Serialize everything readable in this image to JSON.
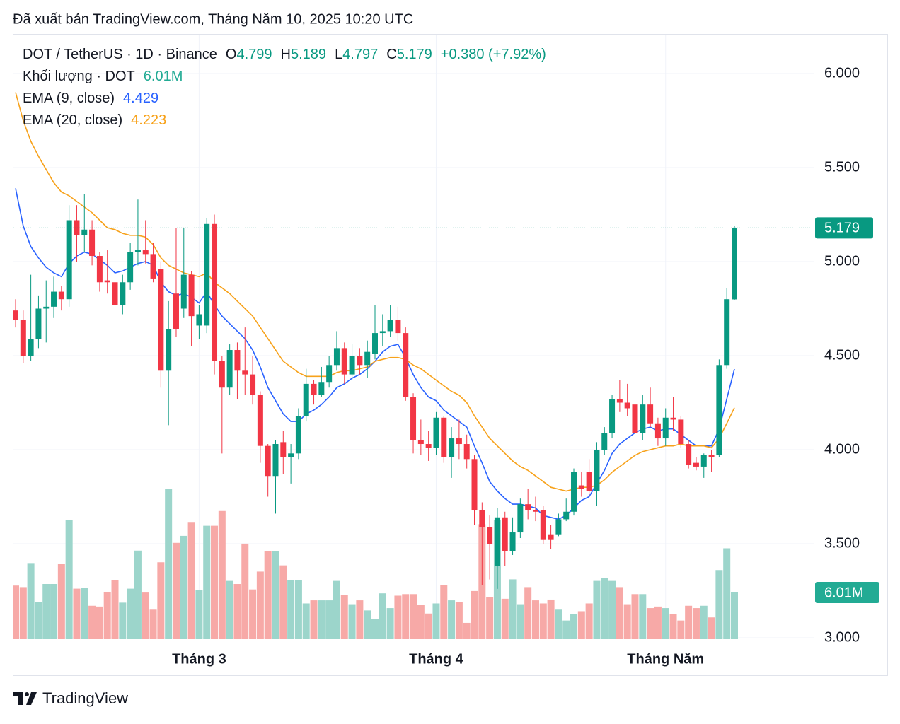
{
  "header": "Đã xuất bản TradingView.com, Tháng Năm 10, 2025 10:20 UTC",
  "brand": "TradingView",
  "chart_data": {
    "type": "candlestick",
    "title": "DOT / TetherUS · 1D · Binance",
    "ohlc_letters": [
      "O",
      "H",
      "L",
      "C"
    ],
    "change": "+0.380 (+7.92%)",
    "up_color": "#089981",
    "down_color": "#f23645",
    "categories": [
      null,
      null,
      null,
      null,
      null,
      null,
      null,
      null,
      null,
      null,
      null,
      null,
      null,
      null,
      null,
      null,
      null,
      null,
      null,
      null,
      null,
      null,
      null,
      null,
      "Tháng 3",
      null,
      null,
      null,
      null,
      null,
      null,
      null,
      null,
      null,
      null,
      null,
      null,
      null,
      null,
      null,
      null,
      null,
      null,
      null,
      null,
      null,
      null,
      null,
      null,
      null,
      null,
      null,
      null,
      null,
      null,
      "Tháng 4",
      null,
      null,
      null,
      null,
      null,
      null,
      null,
      null,
      null,
      null,
      null,
      null,
      null,
      null,
      null,
      null,
      null,
      null,
      null,
      null,
      null,
      null,
      null,
      null,
      null,
      null,
      null,
      null,
      null,
      "Tháng Năm",
      null,
      null,
      null,
      null,
      null,
      null,
      null,
      null,
      null
    ],
    "open": [
      4.74,
      4.69,
      4.5,
      4.59,
      4.75,
      4.76,
      4.84,
      4.8,
      5.22,
      5.14,
      5.17,
      5.03,
      4.9,
      4.89,
      4.77,
      4.89,
      5.05,
      5.06,
      5.04,
      4.96,
      4.42,
      4.83,
      4.75,
      4.93,
      4.66,
      4.66,
      5.2,
      4.47,
      4.33,
      4.53,
      4.42,
      4.4,
      4.29,
      4.02,
      3.86,
      4.04,
      3.96,
      3.98,
      4.18,
      4.35,
      4.29,
      4.36,
      4.45,
      4.54,
      4.4,
      4.5,
      4.45,
      4.51,
      4.62,
      4.63,
      4.69,
      4.62,
      4.28,
      4.05,
      4.03,
      4.01,
      4.17,
      3.96,
      4.06,
      4.03,
      3.95,
      3.68,
      3.59,
      3.38,
      3.64,
      3.46,
      3.56,
      3.71,
      3.68,
      3.68,
      3.55,
      3.55,
      3.63,
      3.67,
      3.81,
      3.88,
      3.78,
      4.0,
      4.09,
      4.27,
      4.25,
      4.24,
      4.09,
      4.24,
      4.14,
      4.06,
      4.17,
      4.16,
      4.03,
      3.93,
      3.91,
      3.97,
      3.97,
      4.45,
      4.799
    ],
    "high": [
      4.8,
      4.74,
      4.93,
      4.82,
      4.9,
      4.92,
      4.87,
      5.3,
      5.3,
      5.36,
      5.22,
      5.05,
      5.06,
      4.96,
      4.93,
      5.1,
      5.33,
      5.22,
      5.1,
      5.0,
      4.79,
      5.18,
      5.18,
      4.95,
      4.77,
      5.23,
      5.25,
      4.5,
      4.56,
      4.57,
      4.65,
      4.5,
      4.31,
      4.03,
      4.05,
      4.1,
      4.03,
      4.22,
      4.43,
      4.37,
      4.44,
      4.5,
      4.63,
      4.57,
      4.56,
      4.54,
      4.58,
      4.77,
      4.72,
      4.77,
      4.76,
      4.65,
      4.3,
      4.16,
      4.1,
      4.2,
      4.18,
      4.12,
      4.16,
      4.08,
      3.97,
      3.72,
      3.65,
      3.69,
      3.67,
      3.64,
      3.74,
      3.79,
      3.75,
      3.7,
      3.6,
      3.66,
      3.74,
      3.9,
      3.88,
      3.95,
      4.04,
      4.12,
      4.29,
      4.37,
      4.35,
      4.3,
      4.29,
      4.33,
      4.17,
      4.22,
      4.28,
      4.18,
      4.05,
      3.96,
      3.98,
      4.0,
      4.48,
      4.86,
      5.189
    ],
    "low": [
      4.65,
      4.46,
      4.47,
      4.54,
      4.57,
      4.7,
      4.74,
      4.76,
      5.0,
      5.05,
      4.98,
      4.84,
      4.83,
      4.63,
      4.72,
      4.85,
      4.98,
      4.99,
      4.89,
      4.33,
      4.13,
      4.6,
      4.7,
      4.55,
      4.59,
      4.62,
      4.4,
      3.98,
      4.29,
      4.27,
      4.29,
      4.24,
      3.93,
      3.75,
      3.66,
      3.87,
      3.82,
      3.95,
      4.15,
      4.24,
      4.28,
      4.33,
      4.42,
      4.35,
      4.37,
      4.4,
      4.38,
      4.48,
      4.55,
      4.6,
      4.58,
      4.26,
      3.98,
      3.97,
      3.94,
      3.97,
      3.93,
      3.85,
      3.95,
      3.9,
      3.6,
      3.28,
      3.31,
      3.26,
      3.38,
      3.44,
      3.53,
      3.63,
      3.62,
      3.5,
      3.47,
      3.54,
      3.62,
      3.65,
      3.75,
      3.75,
      3.7,
      3.97,
      4.06,
      4.2,
      4.18,
      4.06,
      4.05,
      4.12,
      4.02,
      4.02,
      4.1,
      4.01,
      3.9,
      3.89,
      3.85,
      3.88,
      3.96,
      4.43,
      4.797
    ],
    "close": [
      4.69,
      4.5,
      4.59,
      4.75,
      4.76,
      4.84,
      4.8,
      5.22,
      5.14,
      5.17,
      5.03,
      4.89,
      4.89,
      4.77,
      4.89,
      5.05,
      5.06,
      5.04,
      4.91,
      4.42,
      4.64,
      4.64,
      4.93,
      4.71,
      4.72,
      5.2,
      4.47,
      4.33,
      4.53,
      4.42,
      4.4,
      4.29,
      4.02,
      3.86,
      4.03,
      3.96,
      3.98,
      4.18,
      4.35,
      4.29,
      4.36,
      4.45,
      4.54,
      4.4,
      4.5,
      4.45,
      4.52,
      4.62,
      4.63,
      4.69,
      4.62,
      4.28,
      4.05,
      4.03,
      4.01,
      4.17,
      3.96,
      4.06,
      4.03,
      3.95,
      3.68,
      3.59,
      3.5,
      3.64,
      3.46,
      3.56,
      3.71,
      3.68,
      3.67,
      3.52,
      3.52,
      3.63,
      3.67,
      3.88,
      3.79,
      3.78,
      4.0,
      4.09,
      4.27,
      4.25,
      4.22,
      4.09,
      4.24,
      4.14,
      4.06,
      4.17,
      4.16,
      4.03,
      3.92,
      3.91,
      3.97,
      3.96,
      4.45,
      4.8,
      5.179
    ],
    "volume": {
      "name": "Khối lượng · DOT",
      "up_color": "#9cd5cb",
      "down_color": "#f7a9a7",
      "tag_color": "#22ab94",
      "values": [
        6.9,
        6.7,
        9.8,
        4.8,
        7.1,
        7.1,
        9.7,
        15.3,
        6.5,
        6.6,
        4.3,
        4.2,
        6.1,
        7.6,
        4.7,
        6.5,
        11.4,
        6.0,
        3.8,
        9.9,
        19.3,
        12.4,
        13.3,
        15.0,
        6.3,
        14.6,
        14.6,
        16.5,
        7.5,
        7.1,
        12.3,
        6.4,
        8.7,
        11.3,
        11.3,
        9.5,
        7.6,
        7.6,
        4.6,
        5.0,
        5.0,
        5.0,
        7.5,
        5.7,
        4.5,
        5.0,
        3.7,
        2.6,
        5.9,
        4.0,
        5.6,
        5.8,
        5.8,
        4.4,
        3.3,
        4.6,
        7.0,
        5.0,
        4.8,
        2.1,
        6.2,
        14.8,
        5.4,
        15.3,
        5.2,
        7.7,
        4.5,
        6.7,
        5.0,
        4.6,
        5.1,
        3.8,
        2.4,
        3.2,
        3.6,
        4.6,
        7.5,
        7.9,
        7.5,
        6.7,
        4.5,
        5.8,
        5.8,
        4.0,
        4.2,
        4.0,
        3.2,
        2.4,
        4.3,
        4.0,
        4.3,
        2.8,
        8.9,
        11.7,
        6.01
      ],
      "value_labels": [
        null,
        null,
        null,
        null,
        null,
        null,
        null,
        null,
        null,
        null,
        null,
        null,
        null,
        null,
        null,
        null,
        null,
        null,
        null,
        null,
        null,
        null,
        null,
        null,
        null,
        null,
        null,
        null,
        null,
        null,
        null,
        null,
        null,
        null,
        null,
        null,
        null,
        null,
        null,
        null,
        null,
        null,
        null,
        null,
        null,
        null,
        null,
        null,
        null,
        null,
        null,
        null,
        null,
        null,
        null,
        null,
        null,
        null,
        null,
        null,
        null,
        null,
        null,
        null,
        null,
        null,
        null,
        null,
        null,
        null,
        null,
        null,
        null,
        null,
        null,
        null,
        null,
        null,
        null,
        null,
        null,
        null,
        null,
        null,
        null,
        null,
        null,
        null,
        null,
        null,
        null,
        null,
        null,
        null,
        "6.01M"
      ]
    },
    "series": [
      {
        "name": "EMA (9, close)",
        "color": "#2962ff",
        "values": [
          5.39,
          5.19,
          5.08,
          5.02,
          4.97,
          4.94,
          4.92,
          4.99,
          5.03,
          5.05,
          5.04,
          5.01,
          4.98,
          4.94,
          4.95,
          4.97,
          4.99,
          5.0,
          4.98,
          4.89,
          4.84,
          4.82,
          4.83,
          4.81,
          4.78,
          4.84,
          4.77,
          4.71,
          4.67,
          4.63,
          4.59,
          4.53,
          4.44,
          4.33,
          4.26,
          4.19,
          4.15,
          4.15,
          4.19,
          4.21,
          4.24,
          4.28,
          4.33,
          4.35,
          4.38,
          4.4,
          4.43,
          4.47,
          4.52,
          4.55,
          4.56,
          4.49,
          4.4,
          4.33,
          4.28,
          4.26,
          4.21,
          4.18,
          4.15,
          4.12,
          4.02,
          3.93,
          3.83,
          3.78,
          3.74,
          3.71,
          3.71,
          3.7,
          3.69,
          3.65,
          3.64,
          3.63,
          3.65,
          3.69,
          3.73,
          3.75,
          3.82,
          3.89,
          3.98,
          4.03,
          4.06,
          4.09,
          4.11,
          4.12,
          4.1,
          4.11,
          4.11,
          4.08,
          4.05,
          4.02,
          4.02,
          4.02,
          4.11,
          4.27,
          4.429
        ]
      },
      {
        "name": "EMA (20, close)",
        "color": "#f7a21b",
        "values": [
          5.9,
          5.75,
          5.64,
          5.56,
          5.49,
          5.42,
          5.37,
          5.35,
          5.32,
          5.29,
          5.26,
          5.22,
          5.18,
          5.17,
          5.15,
          5.14,
          5.14,
          5.13,
          5.09,
          5.02,
          4.98,
          4.96,
          4.94,
          4.93,
          4.92,
          4.94,
          4.89,
          4.86,
          4.83,
          4.79,
          4.75,
          4.71,
          4.65,
          4.59,
          4.53,
          4.47,
          4.44,
          4.41,
          4.39,
          4.39,
          4.39,
          4.39,
          4.41,
          4.42,
          4.42,
          4.43,
          4.44,
          4.47,
          4.48,
          4.49,
          4.49,
          4.48,
          4.45,
          4.43,
          4.4,
          4.37,
          4.34,
          4.31,
          4.29,
          4.25,
          4.18,
          4.12,
          4.06,
          4.02,
          3.98,
          3.94,
          3.91,
          3.89,
          3.86,
          3.83,
          3.8,
          3.79,
          3.78,
          3.79,
          3.8,
          3.8,
          3.81,
          3.84,
          3.88,
          3.91,
          3.94,
          3.97,
          3.99,
          4.0,
          4.01,
          4.02,
          4.02,
          4.03,
          4.02,
          4.02,
          4.02,
          4.01,
          4.06,
          4.14,
          4.223
        ]
      }
    ],
    "ylim": [
      3.0,
      6.2
    ],
    "yticks": [
      {
        "value": 3,
        "label": "3.000"
      },
      {
        "value": 3.5,
        "label": "3.500"
      },
      {
        "value": 4,
        "label": "4.000"
      },
      {
        "value": 4.5,
        "label": "4.500"
      },
      {
        "value": 5,
        "label": "5.000"
      },
      {
        "value": 5.5,
        "label": "5.500"
      },
      {
        "value": 6,
        "label": "6.000"
      }
    ],
    "grid": true
  }
}
